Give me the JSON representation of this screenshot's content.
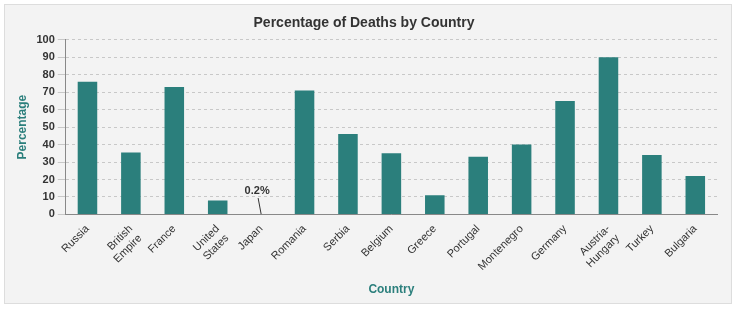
{
  "chart_data": {
    "type": "bar",
    "title": "Percentage of Deaths by Country",
    "x_label": "Country",
    "y_label": "Percentage",
    "categories": [
      "Russia",
      "British Empire",
      "France",
      "United States",
      "Japan",
      "Romania",
      "Serbia",
      "Belgium",
      "Greece",
      "Portugal",
      "Montenegro",
      "Germany",
      "Austria-Hungary",
      "Turkey",
      "Bulgaria"
    ],
    "values": [
      76,
      35.5,
      73,
      8,
      0.2,
      71,
      46,
      35,
      11,
      33,
      40,
      65,
      90,
      34,
      22
    ],
    "color": "#2b7f7c",
    "ylim": [
      0,
      100
    ],
    "yticks": [
      0,
      10,
      20,
      30,
      40,
      50,
      60,
      70,
      80,
      90,
      100
    ],
    "grid": true,
    "annotations": [
      {
        "category": "Japan",
        "text": "0.2%"
      }
    ]
  }
}
